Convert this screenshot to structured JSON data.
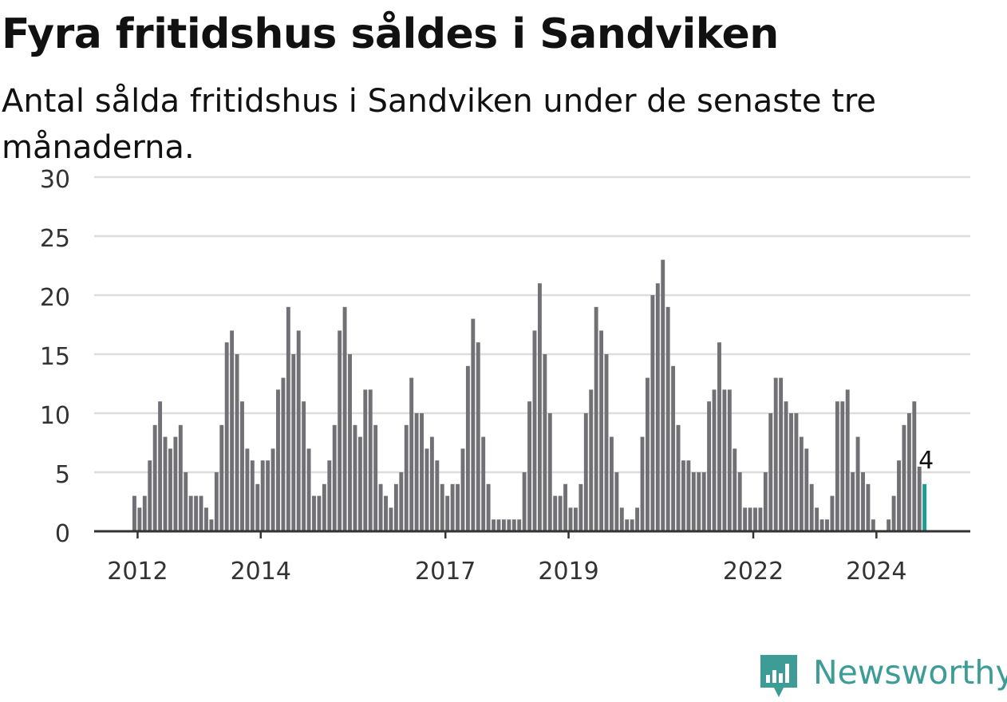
{
  "title": "Fyra fritidshus såldes i Sandviken",
  "subtitle": "Antal sålda fritidshus i Sandviken under de senaste tre månaderna.",
  "brand": {
    "name": "Newsworthy",
    "logo_icon": "bar-chart-speech-bubble-icon",
    "color": "#3d9c96"
  },
  "colors": {
    "bar": "#717074",
    "highlight": "#1a9e92",
    "grid": "#dddddd",
    "axis": "#333333",
    "text": "#333333"
  },
  "chart_data": {
    "type": "bar",
    "title": "Fyra fritidshus såldes i Sandviken",
    "subtitle": "Antal sålda fritidshus i Sandviken under de senaste tre månaderna.",
    "xlabel": "",
    "ylabel": "",
    "ylim": [
      0,
      30
    ],
    "yticks": [
      0,
      5,
      10,
      15,
      20,
      25,
      30
    ],
    "xticks": [
      "2012",
      "2014",
      "2017",
      "2019",
      "2022",
      "2024"
    ],
    "grid": true,
    "start_month": "2011-12",
    "values": [
      3,
      2,
      3,
      6,
      9,
      11,
      8,
      7,
      8,
      9,
      5,
      3,
      3,
      3,
      2,
      1,
      5,
      9,
      16,
      17,
      15,
      11,
      7,
      6,
      4,
      6,
      6,
      7,
      12,
      13,
      19,
      15,
      17,
      11,
      7,
      3,
      3,
      4,
      6,
      9,
      17,
      19,
      15,
      9,
      8,
      12,
      12,
      9,
      4,
      3,
      2,
      4,
      5,
      9,
      13,
      10,
      10,
      7,
      8,
      6,
      4,
      3,
      4,
      4,
      7,
      14,
      18,
      16,
      8,
      4,
      1,
      1,
      1,
      1,
      1,
      1,
      5,
      11,
      17,
      21,
      15,
      10,
      3,
      3,
      4,
      2,
      2,
      4,
      10,
      12,
      19,
      17,
      15,
      8,
      5,
      2,
      1,
      1,
      2,
      8,
      13,
      20,
      21,
      23,
      19,
      14,
      9,
      6,
      6,
      5,
      5,
      5,
      11,
      12,
      16,
      12,
      12,
      7,
      5,
      2,
      2,
      2,
      2,
      5,
      10,
      13,
      13,
      11,
      10,
      10,
      8,
      7,
      4,
      2,
      1,
      1,
      3,
      11,
      11,
      12,
      5,
      8,
      5,
      4,
      1,
      0,
      0,
      1,
      3,
      6,
      9,
      10,
      11,
      6,
      4
    ],
    "highlight_index": 154,
    "annotation": {
      "text": "4",
      "index": 154
    }
  }
}
